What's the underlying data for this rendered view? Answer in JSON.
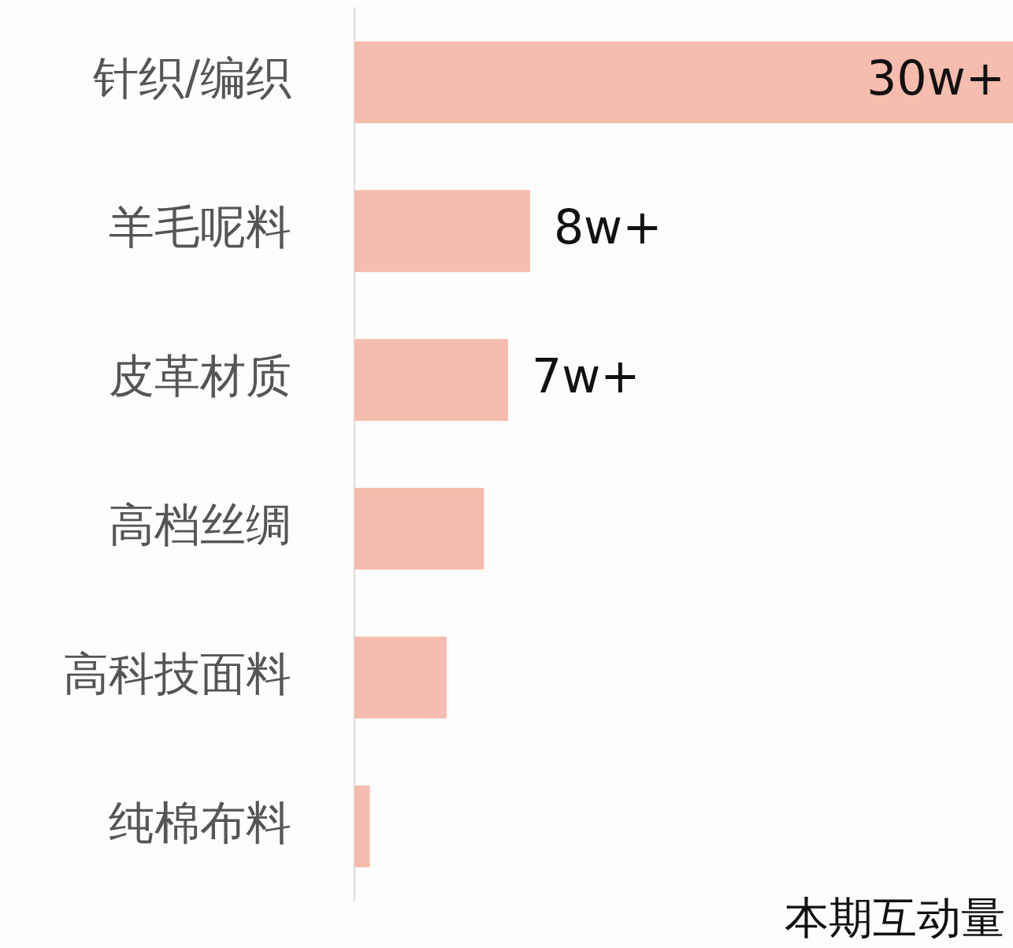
{
  "chart_data": {
    "type": "bar",
    "orientation": "horizontal",
    "xlim": [
      0,
      30
    ],
    "tick_labels": "y",
    "categories": [
      "针织/编织",
      "羊毛呢料",
      "皮革材质",
      "高档丝绸",
      "高科技面料",
      "纯棉布料"
    ],
    "values": [
      30,
      8,
      7,
      5.9,
      4.2,
      0.7
    ],
    "value_labels": [
      "30w+",
      "8w+",
      "7w+",
      null,
      null,
      null
    ],
    "color": "#f6bcad",
    "legend": false,
    "annotations": [
      "本期互动量"
    ]
  }
}
